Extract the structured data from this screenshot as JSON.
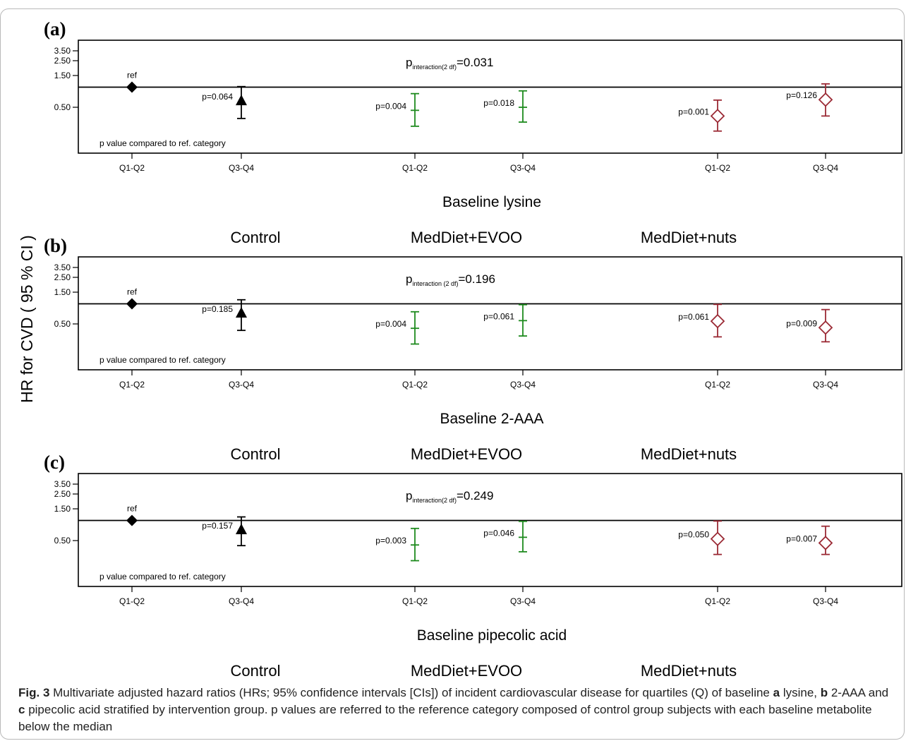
{
  "chart_data": {
    "type": "scatter",
    "ylabel": "HR for CVD ( 95 % CI )",
    "yticks": [
      "3.50",
      "2.50",
      "1.50",
      "0.50"
    ],
    "ytick_values": [
      3.5,
      2.5,
      1.5,
      0.5
    ],
    "ref_line": 1.0,
    "note": "p value compared to ref. category",
    "groups": [
      "Control",
      "MedDiet+EVOO",
      "MedDiet+nuts"
    ],
    "categories": [
      "Q1-Q2",
      "Q3-Q4",
      "Q1-Q2",
      "Q3-Q4",
      "Q1-Q2",
      "Q3-Q4"
    ],
    "colors": {
      "Control": "#000000",
      "MedDiet+EVOO": "#1e8a1e",
      "MedDiet+nuts": "#9b2a35"
    },
    "markers": [
      "filled-diamond",
      "filled-triangle",
      "plus",
      "plus",
      "open-diamond",
      "open-diamond"
    ],
    "panels": [
      {
        "letter": "(a)",
        "xlabel": "Baseline lysine",
        "p_interaction_prefix": "p",
        "p_interaction_sub": "interaction(2 df)",
        "p_interaction_value": "=0.031",
        "points": [
          {
            "label": "ref",
            "hr": 1.0,
            "lo": 1.0,
            "hi": 1.0
          },
          {
            "label": "p=0.064",
            "hr": 0.62,
            "lo": 0.34,
            "hi": 1.02
          },
          {
            "label": "p=0.004",
            "hr": 0.45,
            "lo": 0.26,
            "hi": 0.8
          },
          {
            "label": "p=0.018",
            "hr": 0.5,
            "lo": 0.3,
            "hi": 0.88
          },
          {
            "label": "p=0.001",
            "hr": 0.37,
            "lo": 0.22,
            "hi": 0.64
          },
          {
            "label": "p=0.126",
            "hr": 0.65,
            "lo": 0.37,
            "hi": 1.12
          }
        ]
      },
      {
        "letter": "(b)",
        "xlabel": "Baseline 2-AAA",
        "p_interaction_prefix": "p",
        "p_interaction_sub": "interaction (2 df)",
        "p_interaction_value": "=0.196",
        "points": [
          {
            "label": "ref",
            "hr": 1.0,
            "lo": 1.0,
            "hi": 1.0
          },
          {
            "label": "p=0.185",
            "hr": 0.72,
            "lo": 0.4,
            "hi": 1.15
          },
          {
            "label": "p=0.004",
            "hr": 0.43,
            "lo": 0.25,
            "hi": 0.76
          },
          {
            "label": "p=0.061",
            "hr": 0.56,
            "lo": 0.33,
            "hi": 0.97
          },
          {
            "label": "p=0.061",
            "hr": 0.55,
            "lo": 0.32,
            "hi": 0.98
          },
          {
            "label": "p=0.009",
            "hr": 0.44,
            "lo": 0.27,
            "hi": 0.82
          }
        ]
      },
      {
        "letter": "(c)",
        "xlabel": "Baseline pipecolic acid",
        "p_interaction_prefix": "p",
        "p_interaction_sub": "interaction(2 df)",
        "p_interaction_value": "=0.249",
        "points": [
          {
            "label": "ref",
            "hr": 1.0,
            "lo": 1.0,
            "hi": 1.0
          },
          {
            "label": "p=0.157",
            "hr": 0.72,
            "lo": 0.42,
            "hi": 1.13
          },
          {
            "label": "p=0.003",
            "hr": 0.43,
            "lo": 0.25,
            "hi": 0.76
          },
          {
            "label": "p=0.046",
            "hr": 0.56,
            "lo": 0.34,
            "hi": 0.97
          },
          {
            "label": "p=0.050",
            "hr": 0.53,
            "lo": 0.31,
            "hi": 0.98
          },
          {
            "label": "p=0.007",
            "hr": 0.46,
            "lo": 0.31,
            "hi": 0.82
          }
        ]
      }
    ]
  },
  "caption": {
    "fig_label": "Fig. 3",
    "text_1": "Multivariate adjusted hazard ratios (HRs; 95% confidence intervals [CIs]) of incident cardiovascular disease for quartiles (Q) of baseline ",
    "a": "a",
    "text_2": " lysine, ",
    "b": "b",
    "text_3": " 2-AAA and ",
    "c": "c",
    "text_4": " pipecolic acid stratified by intervention group. p values are referred to the reference category composed of control group subjects with each baseline metabolite below the median"
  }
}
